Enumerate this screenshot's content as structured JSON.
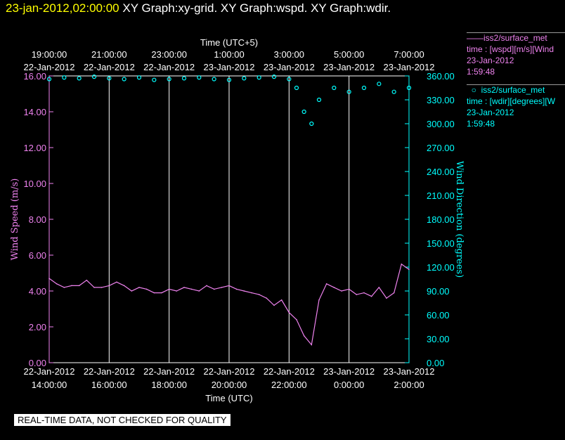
{
  "header": {
    "timestamp": "23-jan-2012,02:00:00",
    "graphs": "XY Graph:xy-grid.  XY Graph:wspd.  XY Graph:wdir."
  },
  "legend": {
    "wspd": {
      "line1": "iss2/surface_met",
      "line2": "time : [wspd][m/s][Wind",
      "line3": "23-Jan-2012",
      "line4": "1:59:48"
    },
    "wdir": {
      "line1": "iss2/surface_met",
      "line2": "time : [wdir][degrees][W",
      "line3": "23-Jan-2012",
      "line4": "1:59:48"
    }
  },
  "disclaimer": "REAL-TIME DATA, NOT CHECKED FOR QUALITY",
  "colors": {
    "wspd": "#ee82ee",
    "wdir": "#00ffff",
    "grid": "#ffffff",
    "background": "#000000",
    "timestamp": "#ffff00"
  },
  "chart_data": {
    "type": "line",
    "grid": true,
    "top_axis": {
      "title": "Time (UTC+5)",
      "ticks": [
        {
          "time": "19:00:00",
          "date": "22-Jan-2012"
        },
        {
          "time": "21:00:00",
          "date": "22-Jan-2012"
        },
        {
          "time": "23:00:00",
          "date": "22-Jan-2012"
        },
        {
          "time": "1:00:00",
          "date": "23-Jan-2012"
        },
        {
          "time": "3:00:00",
          "date": "23-Jan-2012"
        },
        {
          "time": "5:00:00",
          "date": "23-Jan-2012"
        },
        {
          "time": "7:00:00",
          "date": "23-Jan-2012"
        }
      ]
    },
    "bottom_axis": {
      "title": "Time (UTC)",
      "range": [
        "22-Jan-2012 14:00:00",
        "23-Jan-2012 02:00:00"
      ],
      "ticks": [
        {
          "date": "22-Jan-2012",
          "time": "14:00:00"
        },
        {
          "date": "22-Jan-2012",
          "time": "16:00:00"
        },
        {
          "date": "22-Jan-2012",
          "time": "18:00:00"
        },
        {
          "date": "22-Jan-2012",
          "time": "20:00:00"
        },
        {
          "date": "22-Jan-2012",
          "time": "22:00:00"
        },
        {
          "date": "23-Jan-2012",
          "time": "0:00:00"
        },
        {
          "date": "23-Jan-2012",
          "time": "2:00:00"
        }
      ]
    },
    "y_left": {
      "label": "Wind Speed (m/s)",
      "range": [
        0,
        16
      ],
      "ticks": [
        "0.00",
        "2.00",
        "4.00",
        "6.00",
        "8.00",
        "10.00",
        "12.00",
        "14.00",
        "16.00"
      ]
    },
    "y_right": {
      "label": "Wind Direction (degrees)",
      "range": [
        0,
        360
      ],
      "ticks": [
        "0.00",
        "30.00",
        "60.00",
        "90.00",
        "120.00",
        "150.00",
        "180.00",
        "210.00",
        "240.00",
        "270.00",
        "300.00",
        "330.00",
        "360.00"
      ]
    },
    "series": [
      {
        "name": "iss2/surface_met",
        "style": "line",
        "axis": "left",
        "x": [
          "22-Jan-2012 14:00",
          "22-Jan-2012 14:15",
          "22-Jan-2012 14:30",
          "22-Jan-2012 14:45",
          "22-Jan-2012 15:00",
          "22-Jan-2012 15:15",
          "22-Jan-2012 15:30",
          "22-Jan-2012 15:45",
          "22-Jan-2012 16:00",
          "22-Jan-2012 16:15",
          "22-Jan-2012 16:30",
          "22-Jan-2012 16:45",
          "22-Jan-2012 17:00",
          "22-Jan-2012 17:15",
          "22-Jan-2012 17:30",
          "22-Jan-2012 17:45",
          "22-Jan-2012 18:00",
          "22-Jan-2012 18:15",
          "22-Jan-2012 18:30",
          "22-Jan-2012 18:45",
          "22-Jan-2012 19:00",
          "22-Jan-2012 19:15",
          "22-Jan-2012 19:30",
          "22-Jan-2012 19:45",
          "22-Jan-2012 20:00",
          "22-Jan-2012 20:15",
          "22-Jan-2012 20:30",
          "22-Jan-2012 20:45",
          "22-Jan-2012 21:00",
          "22-Jan-2012 21:15",
          "22-Jan-2012 21:30",
          "22-Jan-2012 21:45",
          "22-Jan-2012 22:00",
          "22-Jan-2012 22:15",
          "22-Jan-2012 22:30",
          "22-Jan-2012 22:45",
          "22-Jan-2012 23:00",
          "22-Jan-2012 23:15",
          "22-Jan-2012 23:30",
          "22-Jan-2012 23:45",
          "23-Jan-2012 00:00",
          "23-Jan-2012 00:15",
          "23-Jan-2012 00:30",
          "23-Jan-2012 00:45",
          "23-Jan-2012 01:00",
          "23-Jan-2012 01:15",
          "23-Jan-2012 01:30",
          "23-Jan-2012 01:45",
          "23-Jan-2012 02:00"
        ],
        "values": [
          4.7,
          4.4,
          4.2,
          4.3,
          4.3,
          4.6,
          4.2,
          4.2,
          4.3,
          4.5,
          4.3,
          4.0,
          4.2,
          4.1,
          3.9,
          3.9,
          4.1,
          4.0,
          4.2,
          4.1,
          4.0,
          4.3,
          4.1,
          4.2,
          4.3,
          4.1,
          4.0,
          3.9,
          3.8,
          3.6,
          3.2,
          3.5,
          2.8,
          2.4,
          1.5,
          1.0,
          3.5,
          4.4,
          4.2,
          4.0,
          4.1,
          3.8,
          3.9,
          3.7,
          4.2,
          3.6,
          3.9,
          5.5,
          5.2
        ]
      },
      {
        "name": "iss2/surface_met",
        "style": "scatter",
        "axis": "right",
        "x": [
          "22-Jan-2012 14:00",
          "22-Jan-2012 14:30",
          "22-Jan-2012 15:00",
          "22-Jan-2012 15:30",
          "22-Jan-2012 16:00",
          "22-Jan-2012 16:30",
          "22-Jan-2012 17:00",
          "22-Jan-2012 17:30",
          "22-Jan-2012 18:00",
          "22-Jan-2012 18:30",
          "22-Jan-2012 19:00",
          "22-Jan-2012 19:30",
          "22-Jan-2012 20:00",
          "22-Jan-2012 20:30",
          "22-Jan-2012 21:00",
          "22-Jan-2012 21:30",
          "22-Jan-2012 22:00",
          "22-Jan-2012 22:15",
          "22-Jan-2012 22:30",
          "22-Jan-2012 22:45",
          "22-Jan-2012 23:00",
          "22-Jan-2012 23:30",
          "23-Jan-2012 00:00",
          "23-Jan-2012 00:30",
          "23-Jan-2012 01:00",
          "23-Jan-2012 01:30",
          "23-Jan-2012 02:00"
        ],
        "values": [
          356,
          358,
          357,
          359,
          357,
          356,
          358,
          355,
          356,
          357,
          358,
          356,
          355,
          357,
          358,
          359,
          356,
          345,
          315,
          300,
          330,
          345,
          340,
          345,
          350,
          340,
          345
        ]
      }
    ]
  }
}
